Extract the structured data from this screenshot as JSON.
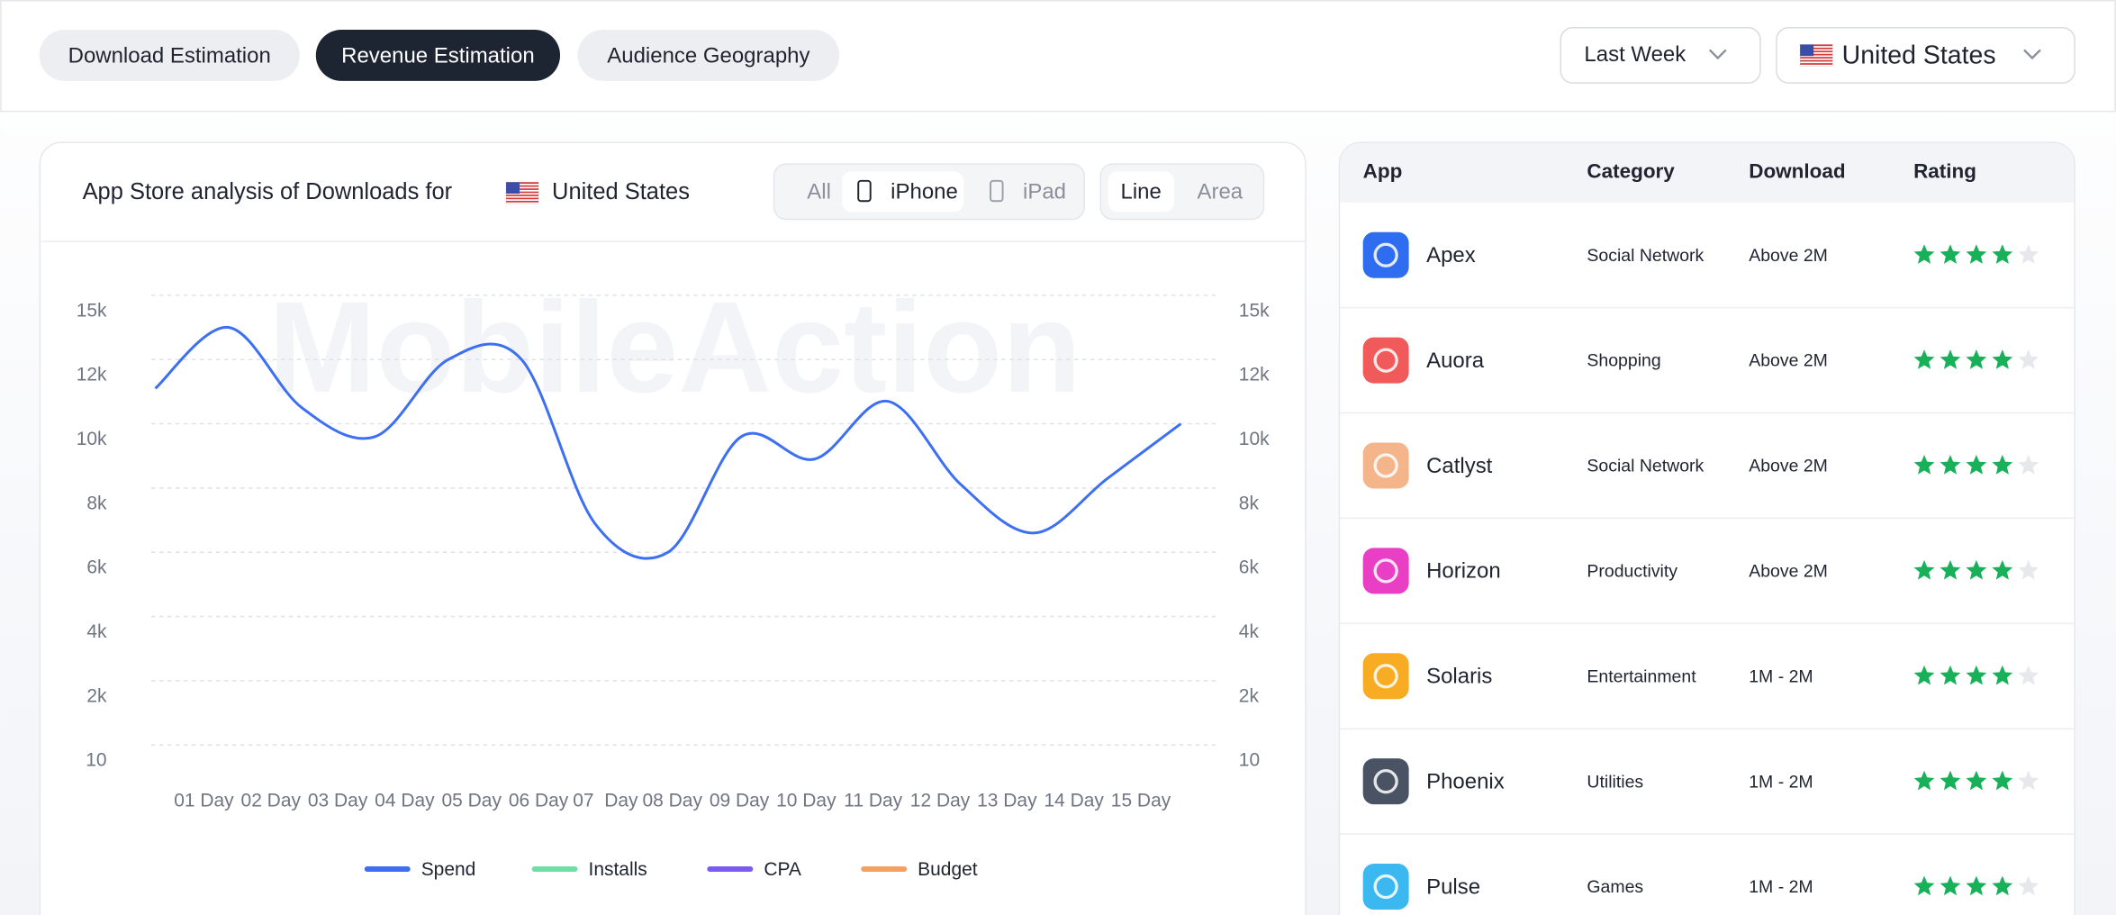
{
  "tabs": [
    {
      "label": "Download Estimation",
      "active": false
    },
    {
      "label": "Revenue Estimation",
      "active": true
    },
    {
      "label": "Audience Geography",
      "active": false
    }
  ],
  "filters": {
    "period": "Last Week",
    "country": "United States"
  },
  "chart_card": {
    "title": "App Store analysis of Downloads for",
    "country": "United States",
    "device_options": [
      "All",
      "iPhone",
      "iPad"
    ],
    "device_selected": 1,
    "view_options": [
      "Line",
      "Area"
    ],
    "view_selected": 0
  },
  "chart_data": {
    "type": "line",
    "watermark": "MobileAction",
    "categories": [
      "01 Day",
      "02 Day",
      "03 Day",
      "04 Day",
      "05 Day",
      "06 Day",
      "07  Day",
      "08 Day",
      "09 Day",
      "10 Day",
      "11 Day",
      "12 Day",
      "13 Day",
      "14 Day",
      "15 Day"
    ],
    "ylim": [
      10,
      15000
    ],
    "yticks": [
      10,
      {
        "value": 2000,
        "label": "2k"
      },
      {
        "value": 4000,
        "label": "4k"
      },
      {
        "value": 6000,
        "label": "6k"
      },
      {
        "value": 8000,
        "label": "8k"
      },
      {
        "value": 10000,
        "label": "10k"
      },
      {
        "value": 12000,
        "label": "12k"
      },
      {
        "value": 15000,
        "label": "15k"
      }
    ],
    "grid": true,
    "series": [
      {
        "name": "Spend",
        "color": "#3d6ff2",
        "values": [
          11100,
          13500,
          10500,
          9600,
          12000,
          12000,
          6900,
          6000,
          9600,
          8900,
          10700,
          8100,
          6600,
          8300,
          10000
        ]
      },
      {
        "name": "Installs",
        "color": "#72dea6"
      },
      {
        "name": "CPA",
        "color": "#7b5cf0"
      },
      {
        "name": "Budget",
        "color": "#f3a063"
      }
    ]
  },
  "table": {
    "columns": [
      "App",
      "Category",
      "Download",
      "Rating"
    ],
    "rating_max": 5,
    "rows": [
      {
        "app": "Apex",
        "category": "Social Network",
        "download": "Above 2M",
        "rating": 4,
        "icon_color": "#2f6df0"
      },
      {
        "app": "Auora",
        "category": "Shopping",
        "download": "Above 2M",
        "rating": 4,
        "icon_color": "#f05a5a"
      },
      {
        "app": "Catlyst",
        "category": "Social Network",
        "download": "Above 2M",
        "rating": 4,
        "icon_color": "#f4b58a"
      },
      {
        "app": "Horizon",
        "category": "Productivity",
        "download": "Above 2M",
        "rating": 4,
        "icon_color": "#e83fc4"
      },
      {
        "app": "Solaris",
        "category": "Entertainment",
        "download": "1M - 2M",
        "rating": 4,
        "icon_color": "#f8ac24"
      },
      {
        "app": "Phoenix",
        "category": "Utilities",
        "download": "1M - 2M",
        "rating": 4,
        "icon_color": "#4a5363"
      },
      {
        "app": "Pulse",
        "category": "Games",
        "download": "1M - 2M",
        "rating": 4,
        "icon_color": "#3cb8f0"
      }
    ]
  }
}
